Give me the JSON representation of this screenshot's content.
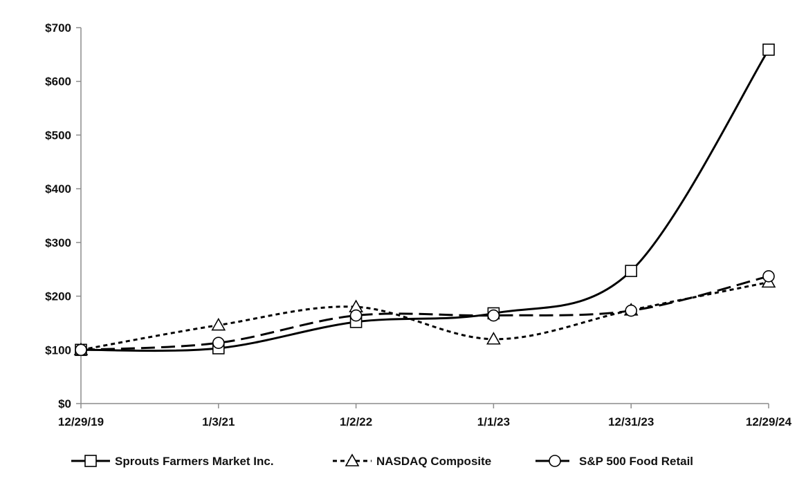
{
  "chart_data": {
    "type": "line",
    "title": "",
    "xlabel": "",
    "ylabel": "",
    "categories": [
      "12/29/19",
      "1/3/21",
      "1/2/22",
      "1/1/23",
      "12/31/23",
      "12/29/24"
    ],
    "ylim": [
      0,
      700
    ],
    "yticks": [
      0,
      100,
      200,
      300,
      400,
      500,
      600,
      700
    ],
    "ytick_labels": [
      "$0",
      "$100",
      "$200",
      "$300",
      "$400",
      "$500",
      "$600",
      "$700"
    ],
    "grid": false,
    "legend_position": "bottom",
    "series": [
      {
        "name": "Sprouts Farmers Market Inc.",
        "values": [
          100,
          103,
          152,
          168,
          247,
          659
        ],
        "line": "solid",
        "marker": "square",
        "color": "#000000"
      },
      {
        "name": "NASDAQ Composite",
        "values": [
          100,
          146,
          180,
          120,
          174,
          226
        ],
        "line": "short-dash",
        "marker": "triangle",
        "color": "#000000"
      },
      {
        "name": "S&P 500 Food Retail",
        "values": [
          100,
          113,
          164,
          164,
          173,
          237
        ],
        "line": "long-dash",
        "marker": "circle",
        "color": "#000000"
      }
    ]
  }
}
